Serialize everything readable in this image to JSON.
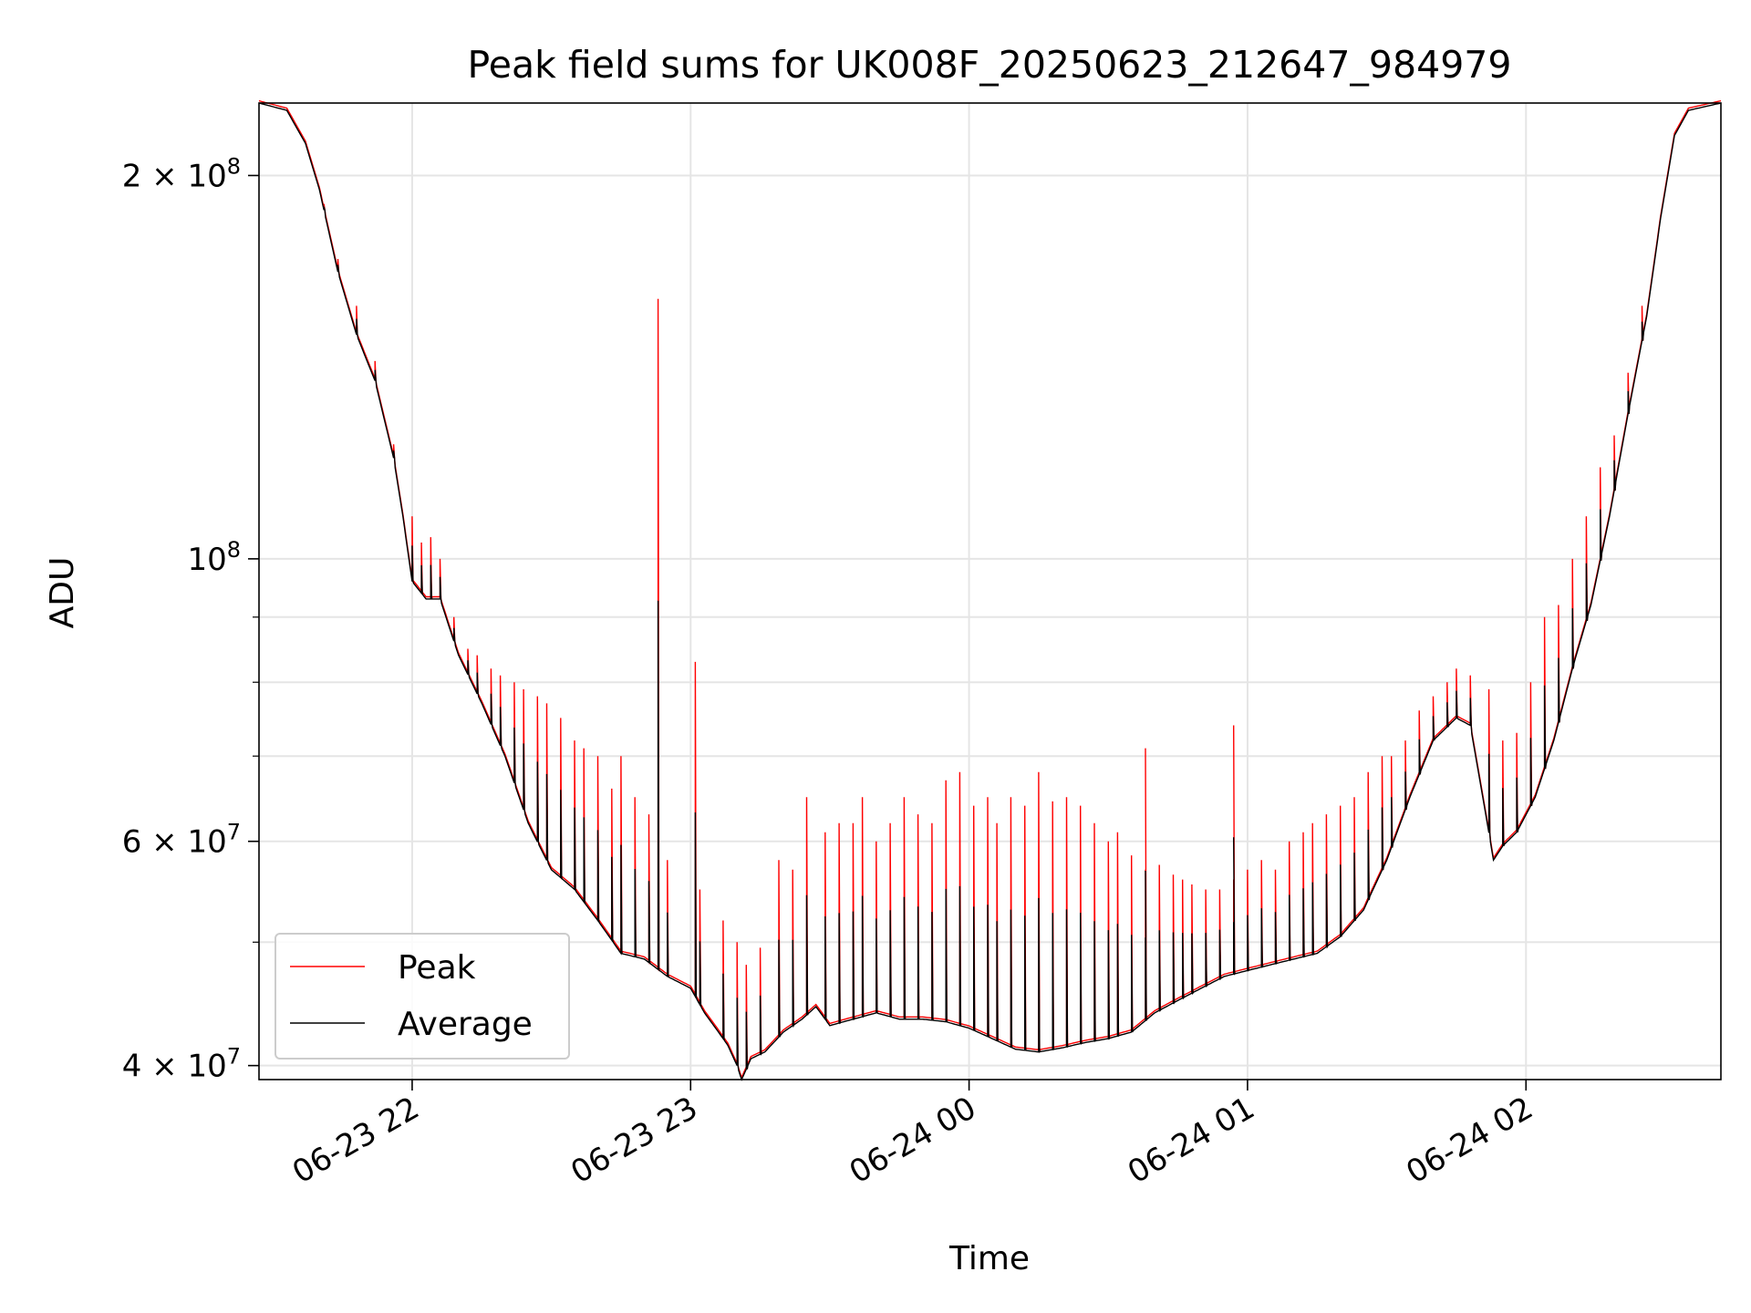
{
  "chart_data": {
    "type": "line",
    "title": "Peak field sums for UK008F_20250623_212647_984979",
    "xlabel": "Time",
    "ylabel": "ADU",
    "yscale": "log",
    "xlim": [
      "2025-06-23 21:27",
      "2025-06-24 02:42"
    ],
    "ylim": [
      39000000,
      228000000
    ],
    "grid": true,
    "legend_position": "lower-left",
    "x_ticks": [
      {
        "value": "2025-06-23 22:00",
        "label": "06-23 22"
      },
      {
        "value": "2025-06-23 23:00",
        "label": "06-23 23"
      },
      {
        "value": "2025-06-24 00:00",
        "label": "06-24 00"
      },
      {
        "value": "2025-06-24 01:00",
        "label": "06-24 01"
      },
      {
        "value": "2025-06-24 02:00",
        "label": "06-24 02"
      }
    ],
    "y_ticks": [
      {
        "value": 40000000,
        "base": "4",
        "exp": "7"
      },
      {
        "value": 60000000,
        "base": "6",
        "exp": "7"
      },
      {
        "value": 100000000,
        "base": "",
        "exp": "8"
      },
      {
        "value": 200000000,
        "base": "2",
        "exp": "8"
      }
    ],
    "y_minor_ticks": [
      50000000,
      70000000,
      80000000,
      90000000
    ],
    "series": [
      {
        "name": "Average",
        "color": "#000000",
        "points": [
          [
            "2025-06-23 21:27",
            228000000
          ],
          [
            "2025-06-23 21:33",
            225000000
          ],
          [
            "2025-06-23 21:37",
            212000000
          ],
          [
            "2025-06-23 21:40",
            195000000
          ],
          [
            "2025-06-23 21:44",
            168000000
          ],
          [
            "2025-06-23 21:48",
            150000000
          ],
          [
            "2025-06-23 21:52",
            138000000
          ],
          [
            "2025-06-23 21:56",
            120000000
          ],
          [
            "2025-06-23 21:58",
            108000000
          ],
          [
            "2025-06-23 22:00",
            96000000
          ],
          [
            "2025-06-23 22:03",
            93000000
          ],
          [
            "2025-06-23 22:06",
            93000000
          ],
          [
            "2025-06-23 22:10",
            84000000
          ],
          [
            "2025-06-23 22:15",
            77000000
          ],
          [
            "2025-06-23 22:20",
            70000000
          ],
          [
            "2025-06-23 22:25",
            62000000
          ],
          [
            "2025-06-23 22:30",
            57000000
          ],
          [
            "2025-06-23 22:35",
            55000000
          ],
          [
            "2025-06-23 22:40",
            52000000
          ],
          [
            "2025-06-23 22:45",
            49000000
          ],
          [
            "2025-06-23 22:50",
            48500000
          ],
          [
            "2025-06-23 22:55",
            47000000
          ],
          [
            "2025-06-23 23:00",
            46000000
          ],
          [
            "2025-06-23 23:03",
            44000000
          ],
          [
            "2025-06-23 23:06",
            42500000
          ],
          [
            "2025-06-23 23:08",
            41500000
          ],
          [
            "2025-06-23 23:10",
            40000000
          ],
          [
            "2025-06-23 23:11",
            39000000
          ],
          [
            "2025-06-23 23:13",
            40500000
          ],
          [
            "2025-06-23 23:16",
            41000000
          ],
          [
            "2025-06-23 23:20",
            42500000
          ],
          [
            "2025-06-23 23:24",
            43500000
          ],
          [
            "2025-06-23 23:27",
            44500000
          ],
          [
            "2025-06-23 23:30",
            43000000
          ],
          [
            "2025-06-23 23:35",
            43500000
          ],
          [
            "2025-06-23 23:40",
            44000000
          ],
          [
            "2025-06-23 23:45",
            43500000
          ],
          [
            "2025-06-23 23:50",
            43500000
          ],
          [
            "2025-06-23 23:55",
            43300000
          ],
          [
            "2025-06-24 00:00",
            42800000
          ],
          [
            "2025-06-24 00:05",
            42000000
          ],
          [
            "2025-06-24 00:10",
            41200000
          ],
          [
            "2025-06-24 00:15",
            41000000
          ],
          [
            "2025-06-24 00:20",
            41300000
          ],
          [
            "2025-06-24 00:25",
            41700000
          ],
          [
            "2025-06-24 00:30",
            42000000
          ],
          [
            "2025-06-24 00:35",
            42500000
          ],
          [
            "2025-06-24 00:40",
            44000000
          ],
          [
            "2025-06-24 00:45",
            45000000
          ],
          [
            "2025-06-24 00:50",
            46000000
          ],
          [
            "2025-06-24 00:55",
            47000000
          ],
          [
            "2025-06-24 01:00",
            47500000
          ],
          [
            "2025-06-24 01:05",
            48000000
          ],
          [
            "2025-06-24 01:10",
            48500000
          ],
          [
            "2025-06-24 01:15",
            49000000
          ],
          [
            "2025-06-24 01:20",
            50500000
          ],
          [
            "2025-06-24 01:25",
            53000000
          ],
          [
            "2025-06-24 01:30",
            58000000
          ],
          [
            "2025-06-24 01:35",
            65000000
          ],
          [
            "2025-06-24 01:40",
            72000000
          ],
          [
            "2025-06-24 01:45",
            75000000
          ],
          [
            "2025-06-24 01:48",
            74000000
          ],
          [
            "2025-06-24 01:51",
            64000000
          ],
          [
            "2025-06-24 01:53",
            58000000
          ],
          [
            "2025-06-24 01:55",
            59500000
          ],
          [
            "2025-06-24 01:58",
            61000000
          ],
          [
            "2025-06-24 02:02",
            65000000
          ],
          [
            "2025-06-24 02:06",
            72000000
          ],
          [
            "2025-06-24 02:10",
            82000000
          ],
          [
            "2025-06-24 02:14",
            92000000
          ],
          [
            "2025-06-24 02:18",
            108000000
          ],
          [
            "2025-06-24 02:22",
            130000000
          ],
          [
            "2025-06-24 02:26",
            155000000
          ],
          [
            "2025-06-24 02:29",
            185000000
          ],
          [
            "2025-06-24 02:32",
            215000000
          ],
          [
            "2025-06-24 02:35",
            225000000
          ],
          [
            "2025-06-24 02:42",
            228000000
          ]
        ]
      },
      {
        "name": "Peak",
        "color": "#ff0000",
        "spikes": [
          [
            "2025-06-23 21:41",
            190000000
          ],
          [
            "2025-06-23 21:44",
            172000000
          ],
          [
            "2025-06-23 21:48",
            158000000
          ],
          [
            "2025-06-23 21:52",
            143000000
          ],
          [
            "2025-06-23 21:56",
            123000000
          ],
          [
            "2025-06-23 22:00",
            108000000
          ],
          [
            "2025-06-23 22:02",
            103000000
          ],
          [
            "2025-06-23 22:04",
            104000000
          ],
          [
            "2025-06-23 22:06",
            100000000
          ],
          [
            "2025-06-23 22:09",
            90000000
          ],
          [
            "2025-06-23 22:12",
            85000000
          ],
          [
            "2025-06-23 22:14",
            84000000
          ],
          [
            "2025-06-23 22:17",
            82000000
          ],
          [
            "2025-06-23 22:19",
            81000000
          ],
          [
            "2025-06-23 22:22",
            80000000
          ],
          [
            "2025-06-23 22:24",
            79000000
          ],
          [
            "2025-06-23 22:27",
            78000000
          ],
          [
            "2025-06-23 22:29",
            77000000
          ],
          [
            "2025-06-23 22:32",
            75000000
          ],
          [
            "2025-06-23 22:35",
            72000000
          ],
          [
            "2025-06-23 22:37",
            71000000
          ],
          [
            "2025-06-23 22:40",
            70000000
          ],
          [
            "2025-06-23 22:43",
            66000000
          ],
          [
            "2025-06-23 22:45",
            70000000
          ],
          [
            "2025-06-23 22:48",
            65000000
          ],
          [
            "2025-06-23 22:51",
            63000000
          ],
          [
            "2025-06-23 22:53",
            160000000
          ],
          [
            "2025-06-23 22:55",
            58000000
          ],
          [
            "2025-06-23 23:02",
            55000000
          ],
          [
            "2025-06-23 23:07",
            52000000
          ],
          [
            "2025-06-23 23:10",
            50000000
          ],
          [
            "2025-06-23 23:12",
            48000000
          ],
          [
            "2025-06-23 23:15",
            49500000
          ],
          [
            "2025-06-23 23:19",
            58000000
          ],
          [
            "2025-06-23 23:22",
            57000000
          ],
          [
            "2025-06-23 23:25",
            65000000
          ],
          [
            "2025-06-23 23:29",
            61000000
          ],
          [
            "2025-06-23 23:32",
            62000000
          ],
          [
            "2025-06-23 23:35",
            62000000
          ],
          [
            "2025-06-23 23:37",
            65000000
          ],
          [
            "2025-06-23 23:40",
            60000000
          ],
          [
            "2025-06-23 23:43",
            62000000
          ],
          [
            "2025-06-23 23:46",
            65000000
          ],
          [
            "2025-06-23 23:49",
            63000000
          ],
          [
            "2025-06-23 23:52",
            62000000
          ],
          [
            "2025-06-23 23:55",
            67000000
          ],
          [
            "2025-06-23 23:58",
            68000000
          ],
          [
            "2025-06-24 00:01",
            64000000
          ],
          [
            "2025-06-24 00:04",
            65000000
          ],
          [
            "2025-06-24 00:06",
            62000000
          ],
          [
            "2025-06-24 00:09",
            65000000
          ],
          [
            "2025-06-24 00:12",
            64000000
          ],
          [
            "2025-06-24 00:15",
            68000000
          ],
          [
            "2025-06-24 00:18",
            64500000
          ],
          [
            "2025-06-24 00:21",
            65000000
          ],
          [
            "2025-06-24 00:24",
            64000000
          ],
          [
            "2025-06-24 00:27",
            62000000
          ],
          [
            "2025-06-24 00:30",
            60000000
          ],
          [
            "2025-06-24 00:32",
            61000000
          ],
          [
            "2025-06-24 00:35",
            58500000
          ],
          [
            "2025-06-24 00:38",
            57000000
          ],
          [
            "2025-06-24 00:41",
            57500000
          ],
          [
            "2025-06-24 00:44",
            56500000
          ],
          [
            "2025-06-24 00:46",
            56000000
          ],
          [
            "2025-06-24 00:48",
            55500000
          ],
          [
            "2025-06-24 00:51",
            55000000
          ],
          [
            "2025-06-24 00:54",
            55000000
          ],
          [
            "2025-06-24 00:57",
            56000000
          ],
          [
            "2025-06-24 01:00",
            57000000
          ],
          [
            "2025-06-24 01:03",
            58000000
          ],
          [
            "2025-06-24 01:06",
            57000000
          ],
          [
            "2025-06-24 01:09",
            60000000
          ],
          [
            "2025-06-24 01:12",
            61000000
          ],
          [
            "2025-06-24 01:14",
            62000000
          ],
          [
            "2025-06-24 01:17",
            63000000
          ],
          [
            "2025-06-24 01:20",
            64000000
          ],
          [
            "2025-06-24 01:23",
            65000000
          ],
          [
            "2025-06-24 01:26",
            68000000
          ],
          [
            "2025-06-24 01:29",
            70000000
          ],
          [
            "2025-06-24 01:31",
            70000000
          ],
          [
            "2025-06-24 01:34",
            72000000
          ],
          [
            "2025-06-24 01:37",
            76000000
          ],
          [
            "2025-06-24 01:40",
            78000000
          ],
          [
            "2025-06-24 01:43",
            80000000
          ],
          [
            "2025-06-24 01:45",
            82000000
          ],
          [
            "2025-06-24 01:48",
            81000000
          ],
          [
            "2025-06-24 01:52",
            79000000
          ],
          [
            "2025-06-24 01:55",
            72000000
          ],
          [
            "2025-06-24 01:58",
            73000000
          ],
          [
            "2025-06-24 02:01",
            80000000
          ],
          [
            "2025-06-24 02:04",
            90000000
          ],
          [
            "2025-06-24 02:07",
            92000000
          ],
          [
            "2025-06-24 02:10",
            100000000
          ],
          [
            "2025-06-24 02:13",
            108000000
          ],
          [
            "2025-06-24 02:16",
            118000000
          ],
          [
            "2025-06-24 02:19",
            125000000
          ],
          [
            "2025-06-24 02:22",
            140000000
          ],
          [
            "2025-06-24 02:25",
            158000000
          ]
        ],
        "extra_spikes": [
          [
            "2025-06-23 23:01",
            83000000
          ],
          [
            "2025-06-24 00:38",
            71000000
          ],
          [
            "2025-06-24 00:57",
            74000000
          ]
        ]
      }
    ]
  }
}
